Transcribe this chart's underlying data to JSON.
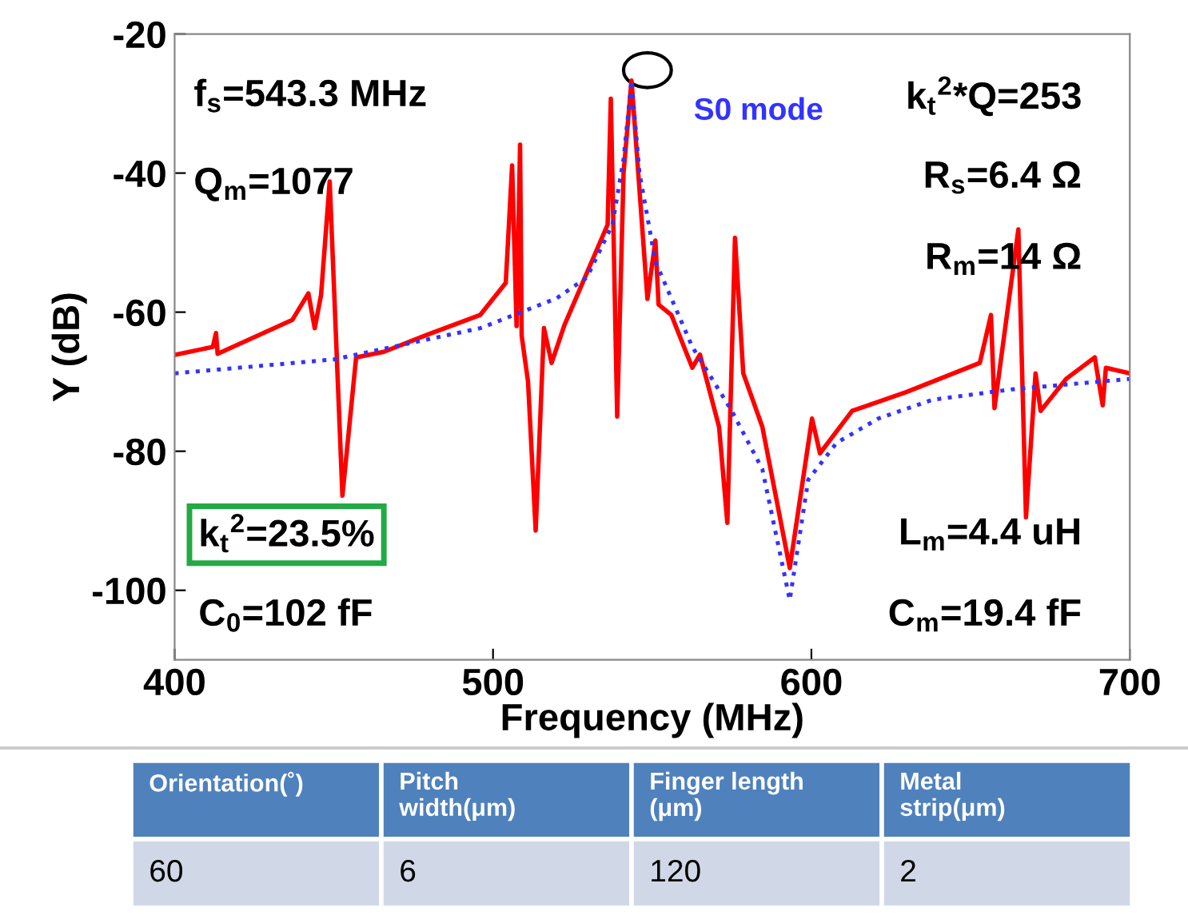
{
  "chart_data": {
    "type": "line",
    "xlabel": "Frequency (MHz)",
    "ylabel": "Y (dB)",
    "xlim": [
      400,
      700
    ],
    "ylim": [
      -110,
      -20
    ],
    "xticks": [
      400,
      500,
      600,
      700
    ],
    "yticks": [
      -100,
      -80,
      -60,
      -40,
      -20
    ],
    "grid": false,
    "legend": false,
    "series": [
      {
        "color": "#ff0000",
        "line_style": "solid",
        "x": [
          400.5,
          412,
          413,
          413.5,
          437,
          442,
          444,
          446,
          448.7,
          452.7,
          457,
          465.7,
          479,
          496,
          504,
          506,
          507.4,
          508.5,
          509,
          511,
          513.4,
          516,
          518.4,
          522.4,
          536,
          537,
          539,
          541,
          543.5,
          548.5,
          551,
          552,
          556,
          562.6,
          565,
          571,
          573.6,
          576,
          578.6,
          584.6,
          593.2,
          600.2,
          602.7,
          612.8,
          629.8,
          652.9,
          656.4,
          657.5,
          665,
          667.4,
          670.4,
          672,
          680,
          689,
          691.5,
          692.5,
          700
        ],
        "values": [
          -66.1,
          -65,
          -63,
          -66,
          -61.1,
          -57.3,
          -62.3,
          -57.5,
          -41.2,
          -86.4,
          -66.5,
          -65.7,
          -63.3,
          -60.4,
          -55.8,
          -38.9,
          -62,
          -35.9,
          -63.4,
          -70,
          -91.4,
          -62.3,
          -67.3,
          -61.9,
          -47.4,
          -29.3,
          -75,
          -40,
          -26.7,
          -58.1,
          -49.7,
          -58.9,
          -60.4,
          -68,
          -66.1,
          -76.5,
          -90.3,
          -49.3,
          -68.8,
          -76.5,
          -96.8,
          -75.3,
          -80.3,
          -74.2,
          -71.5,
          -67.3,
          -60.4,
          -73.8,
          -48.1,
          -89.5,
          -68.8,
          -74.2,
          -69.6,
          -66.5,
          -73.4,
          -68,
          -68.8
        ]
      },
      {
        "name": "S0 mode",
        "color": "#3333ff",
        "line_style": "dotted",
        "x": [
          400,
          450,
          496,
          520,
          529.5,
          537.5,
          541,
          543.5,
          546,
          551,
          562.6,
          575,
          584.6,
          593.2,
          599,
          607.9,
          621,
          638,
          663,
          700
        ],
        "values": [
          -68.8,
          -66.8,
          -62.3,
          -58,
          -55,
          -47.4,
          -38,
          -26.7,
          -40,
          -52.7,
          -65,
          -74.2,
          -82.6,
          -101.4,
          -84.1,
          -78.8,
          -75.3,
          -72.6,
          -71.1,
          -69.6
        ]
      }
    ],
    "annotations": [
      "f$_{s}$=543.3 MHz",
      "Q$_{m}$=1077",
      "k$_{t}$$^{2}$*Q=253",
      "R$_{s}$=6.4 Ω",
      "R$_{m}$=14 Ω",
      "k$_{t}$$^{2}$=23.5%",
      "C$_{0}$=102 fF",
      "L$_{m}$=4.4 uH",
      "C$_{m}$=19.4 fF",
      "Orientation(˚)",
      "Pitch\nwidth(μm)",
      "Finger length\n(μm)",
      "Metal\nstrip(μm)",
      "60",
      "6",
      "120",
      "2"
    ]
  }
}
